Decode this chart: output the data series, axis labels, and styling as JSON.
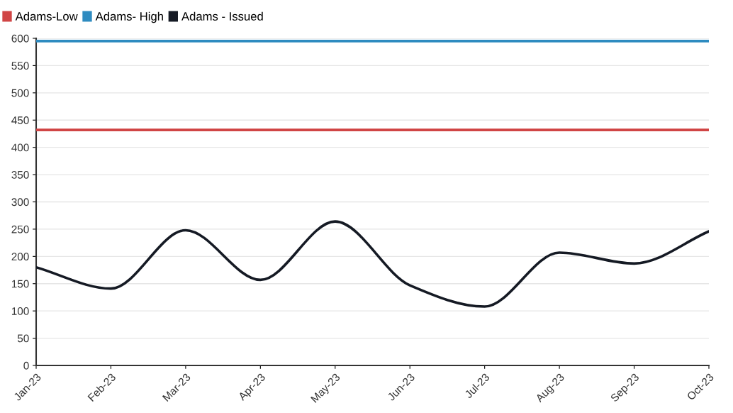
{
  "chart_data": {
    "type": "line",
    "categories": [
      "Jan-23",
      "Feb-23",
      "Mar-23",
      "Apr-23",
      "May-23",
      "Jun-23",
      "Jul-23",
      "Aug-23",
      "Sep-23",
      "Oct-23"
    ],
    "series": [
      {
        "name": "Adams-Low",
        "color": "#d04545",
        "values": [
          432,
          432,
          432,
          432,
          432,
          432,
          432,
          432,
          432,
          432
        ]
      },
      {
        "name": "Adams- High",
        "color": "#2e8bc0",
        "values": [
          595,
          595,
          595,
          595,
          595,
          595,
          595,
          595,
          595,
          595
        ]
      },
      {
        "name": "Adams - Issued",
        "color": "#151a24",
        "values": [
          180,
          141,
          248,
          157,
          264,
          147,
          108,
          207,
          187,
          246
        ]
      }
    ],
    "ylim": [
      0,
      600
    ],
    "yticks": [
      0,
      50,
      100,
      150,
      200,
      250,
      300,
      350,
      400,
      450,
      500,
      550,
      600
    ],
    "grid": "y",
    "legend": "top left",
    "marker": "none",
    "line_style": "solid"
  }
}
